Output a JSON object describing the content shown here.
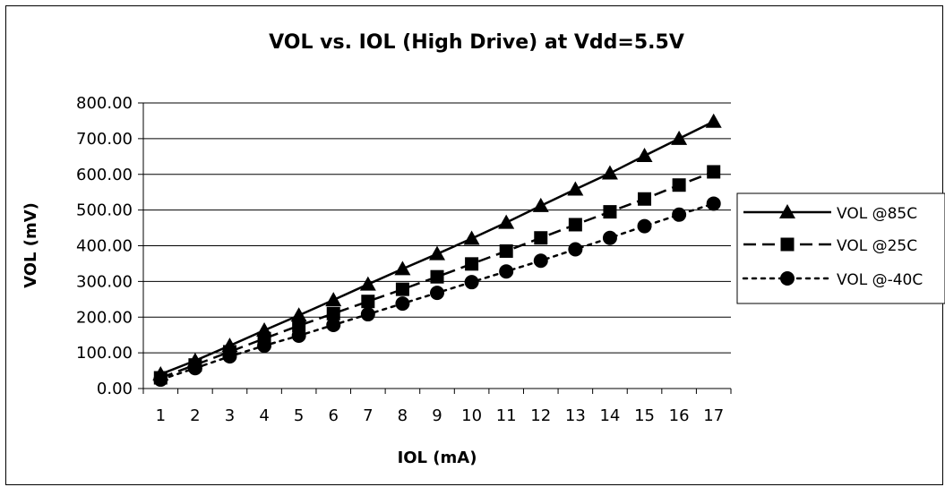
{
  "chart_data": {
    "type": "line",
    "title": "VOL vs. IOL (High Drive) at Vdd=5.5V",
    "xlabel": "IOL (mA)",
    "ylabel": "VOL (mV)",
    "categories": [
      "1",
      "2",
      "3",
      "4",
      "5",
      "6",
      "7",
      "8",
      "9",
      "10",
      "11",
      "12",
      "13",
      "14",
      "15",
      "16",
      "17"
    ],
    "y_tick_labels": [
      "0.00",
      "100.00",
      "200.00",
      "300.00",
      "400.00",
      "500.00",
      "600.00",
      "700.00",
      "800.00"
    ],
    "ylim": [
      0,
      800
    ],
    "y_gridlines": true,
    "legend_position": "right",
    "series": [
      {
        "name": "VOL @85C",
        "marker": "triangle",
        "line_style": "solid",
        "color": "#000000",
        "values": [
          40,
          78,
          120,
          163,
          205,
          248,
          292,
          335,
          377,
          420,
          465,
          512,
          558,
          603,
          652,
          700,
          748
        ]
      },
      {
        "name": "VOL @25C",
        "marker": "square",
        "line_style": "dashed",
        "color": "#000000",
        "values": [
          30,
          66,
          103,
          140,
          176,
          210,
          244,
          278,
          313,
          349,
          385,
          422,
          459,
          495,
          531,
          570,
          607
        ]
      },
      {
        "name": "VOL @-40C",
        "marker": "circle",
        "line_style": "dotted",
        "color": "#000000",
        "values": [
          25,
          57,
          90,
          120,
          148,
          178,
          208,
          238,
          268,
          298,
          328,
          358,
          390,
          422,
          455,
          487,
          518
        ]
      }
    ]
  }
}
